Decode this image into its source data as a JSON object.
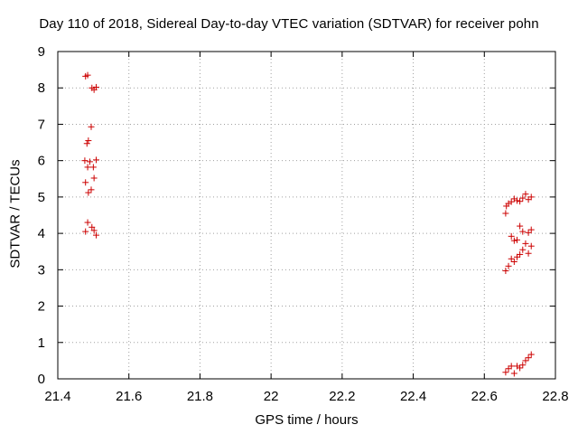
{
  "chart_data": {
    "type": "scatter",
    "title": "Day 110 of 2018, Sidereal Day-to-day VTEC variation (SDTVAR) for receiver pohn",
    "xlabel": "GPS time / hours",
    "ylabel": "SDTVAR / TECUs",
    "xlim": [
      21.4,
      22.8
    ],
    "ylim": [
      0,
      9
    ],
    "x_ticks": [
      "21.4",
      "21.6",
      "21.8",
      "22",
      "22.2",
      "22.4",
      "22.6",
      "22.8"
    ],
    "y_ticks": [
      "0",
      "1",
      "2",
      "3",
      "4",
      "5",
      "6",
      "7",
      "8",
      "9"
    ],
    "grid": true,
    "marker": "+",
    "color": "#cc0000",
    "series": [
      {
        "name": "SDTVAR",
        "points": [
          [
            21.478,
            8.32
          ],
          [
            21.484,
            8.35
          ],
          [
            21.496,
            8.0
          ],
          [
            21.502,
            7.95
          ],
          [
            21.508,
            8.02
          ],
          [
            21.494,
            6.93
          ],
          [
            21.486,
            6.55
          ],
          [
            21.482,
            6.47
          ],
          [
            21.476,
            6.0
          ],
          [
            21.49,
            5.97
          ],
          [
            21.508,
            6.02
          ],
          [
            21.484,
            5.82
          ],
          [
            21.5,
            5.82
          ],
          [
            21.502,
            5.52
          ],
          [
            21.478,
            5.4
          ],
          [
            21.494,
            5.2
          ],
          [
            21.486,
            5.12
          ],
          [
            21.484,
            4.3
          ],
          [
            21.496,
            4.17
          ],
          [
            21.478,
            4.05
          ],
          [
            21.502,
            4.08
          ],
          [
            21.508,
            3.95
          ],
          [
            22.662,
            4.75
          ],
          [
            22.668,
            4.82
          ],
          [
            22.676,
            4.87
          ],
          [
            22.684,
            4.95
          ],
          [
            22.692,
            4.9
          ],
          [
            22.7,
            4.88
          ],
          [
            22.708,
            4.97
          ],
          [
            22.716,
            5.08
          ],
          [
            22.724,
            4.93
          ],
          [
            22.732,
            5.0
          ],
          [
            22.66,
            4.55
          ],
          [
            22.7,
            4.2
          ],
          [
            22.708,
            4.05
          ],
          [
            22.724,
            4.02
          ],
          [
            22.732,
            4.1
          ],
          [
            22.676,
            3.92
          ],
          [
            22.684,
            3.8
          ],
          [
            22.692,
            3.82
          ],
          [
            22.716,
            3.72
          ],
          [
            22.732,
            3.65
          ],
          [
            22.708,
            3.55
          ],
          [
            22.724,
            3.45
          ],
          [
            22.676,
            3.3
          ],
          [
            22.684,
            3.22
          ],
          [
            22.692,
            3.35
          ],
          [
            22.7,
            3.42
          ],
          [
            22.668,
            3.1
          ],
          [
            22.66,
            2.97
          ],
          [
            22.66,
            0.18
          ],
          [
            22.668,
            0.28
          ],
          [
            22.676,
            0.35
          ],
          [
            22.684,
            0.15
          ],
          [
            22.692,
            0.35
          ],
          [
            22.7,
            0.3
          ],
          [
            22.708,
            0.38
          ],
          [
            22.716,
            0.5
          ],
          [
            22.724,
            0.58
          ],
          [
            22.732,
            0.67
          ]
        ]
      }
    ]
  }
}
